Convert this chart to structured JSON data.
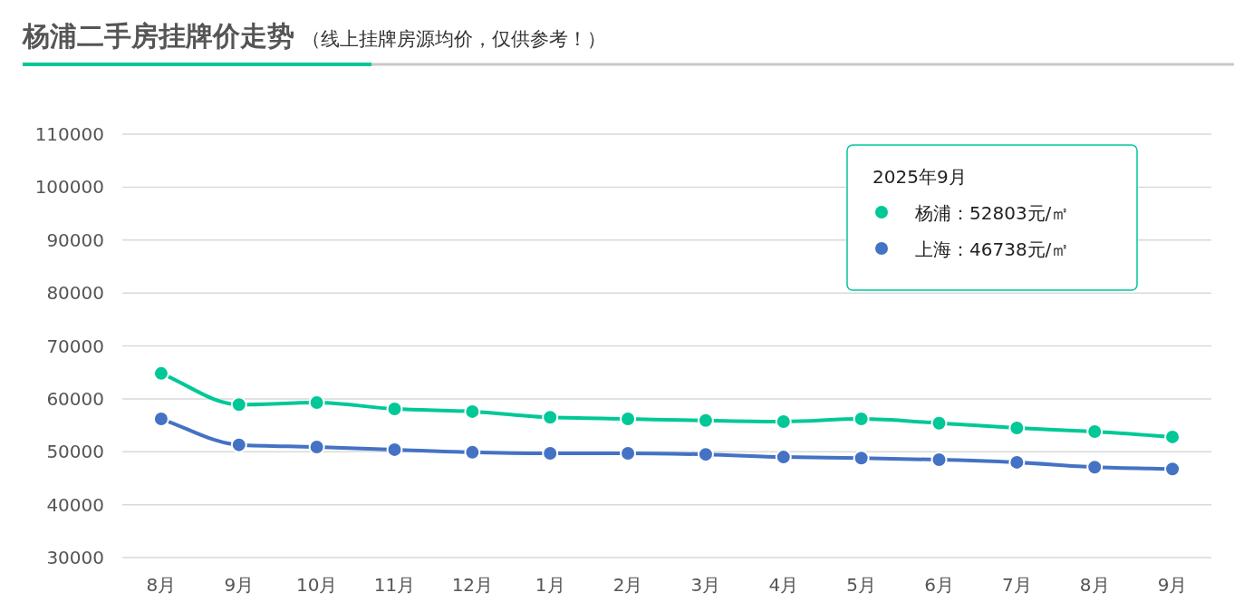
{
  "chart_data": {
    "type": "line",
    "title": "杨浦二手房挂牌价走势",
    "subtitle": "（线上挂牌房源均价，仅供参考！）",
    "categories": [
      "8月",
      "9月",
      "10月",
      "11月",
      "12月",
      "1月",
      "2月",
      "3月",
      "4月",
      "5月",
      "6月",
      "7月",
      "8月",
      "9月"
    ],
    "series": [
      {
        "color": "#00c896",
        "values": [
          64800,
          58900,
          59300,
          58100,
          57600,
          56500,
          56200,
          55900,
          55700,
          56200,
          55400,
          54500,
          53800,
          52803
        ]
      },
      {
        "color": "#4472c4",
        "values": [
          56200,
          51300,
          50900,
          50400,
          49900,
          49700,
          49700,
          49500,
          49000,
          48800,
          48500,
          48000,
          47100,
          46738
        ]
      }
    ],
    "ylim": [
      30000,
      110000
    ],
    "yticks": [
      30000,
      40000,
      50000,
      60000,
      70000,
      80000,
      90000,
      100000,
      110000
    ],
    "grid": "y",
    "marker": "circle",
    "line_style": "solid",
    "annotations": [
      "2025年9月",
      "杨浦：52803元/㎡",
      "上海：46738元/㎡"
    ]
  }
}
